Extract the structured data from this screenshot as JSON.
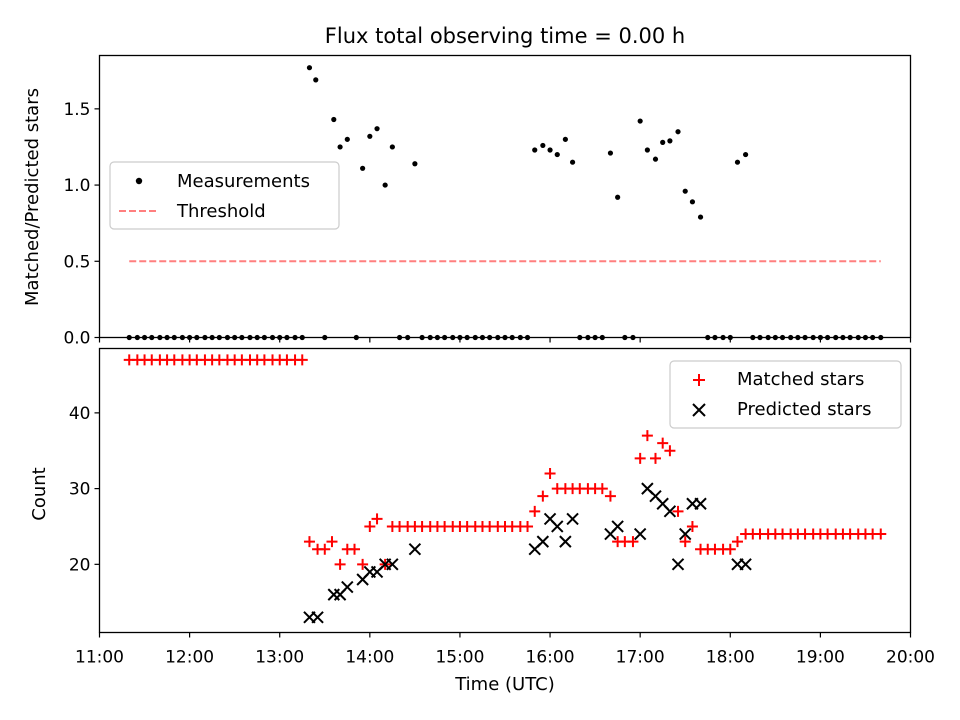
{
  "chart_data": [
    {
      "type": "scatter",
      "title": "Flux total observing time = 0.00 h",
      "xlabel": "",
      "ylabel": "Matched/Predicted stars",
      "xlim": [
        11.0,
        20.0
      ],
      "ylim": [
        0.0,
        1.85
      ],
      "yticks": [
        0.0,
        0.5,
        1.0,
        1.5
      ],
      "yticklabels": [
        "0.0",
        "0.5",
        "1.0",
        "1.5"
      ],
      "legend_position": "center-left",
      "series": [
        {
          "name": "Measurements",
          "color": "#000000",
          "marker": "dot",
          "x": [
            11.33,
            11.42,
            11.5,
            11.58,
            11.67,
            11.75,
            11.83,
            11.92,
            12.0,
            12.08,
            12.17,
            12.25,
            12.33,
            12.42,
            12.5,
            12.58,
            12.67,
            12.75,
            12.83,
            12.92,
            13.0,
            13.08,
            13.17,
            13.25,
            13.33,
            13.4,
            13.5,
            13.6,
            13.67,
            13.75,
            13.85,
            13.92,
            14.0,
            14.08,
            14.17,
            14.25,
            14.33,
            14.42,
            14.5,
            14.58,
            14.67,
            14.75,
            14.83,
            14.92,
            15.0,
            15.08,
            15.17,
            15.25,
            15.33,
            15.42,
            15.5,
            15.58,
            15.67,
            15.75,
            15.83,
            15.92,
            16.0,
            16.08,
            16.17,
            16.25,
            16.33,
            16.42,
            16.5,
            16.58,
            16.67,
            16.75,
            16.83,
            16.92,
            17.0,
            17.08,
            17.17,
            17.25,
            17.33,
            17.42,
            17.5,
            17.58,
            17.67,
            17.75,
            17.83,
            17.92,
            18.0,
            18.08,
            18.17,
            18.25,
            18.33,
            18.42,
            18.5,
            18.58,
            18.67,
            18.75,
            18.83,
            18.92,
            19.0,
            19.08,
            19.17,
            19.25,
            19.33,
            19.42,
            19.5,
            19.58,
            19.67
          ],
          "y": [
            0,
            0,
            0,
            0,
            0,
            0,
            0,
            0,
            0,
            0,
            0,
            0,
            0,
            0,
            0,
            0,
            0,
            0,
            0,
            0,
            0,
            0,
            0,
            0,
            1.77,
            1.69,
            0,
            1.43,
            1.25,
            1.3,
            0,
            1.11,
            1.32,
            1.37,
            1.0,
            1.25,
            0,
            0,
            1.14,
            0,
            0,
            0,
            0,
            0,
            0,
            0,
            0,
            0,
            0,
            0,
            0,
            0,
            0,
            0,
            1.23,
            1.26,
            1.23,
            1.2,
            1.3,
            1.15,
            0,
            0,
            0,
            0,
            1.21,
            0.92,
            0,
            0,
            1.42,
            1.23,
            1.17,
            1.28,
            1.29,
            1.35,
            0.96,
            0.89,
            0.79,
            0,
            0,
            0,
            0,
            1.15,
            1.2,
            0,
            0,
            0,
            0,
            0,
            0,
            0,
            0,
            0,
            0,
            0,
            0,
            0,
            0,
            0,
            0,
            0,
            0
          ]
        },
        {
          "name": "Threshold",
          "color": "#ff7f7f",
          "style": "dashed",
          "x": [
            11.33,
            19.67
          ],
          "y": [
            0.5,
            0.5
          ]
        }
      ]
    },
    {
      "type": "scatter",
      "title": "",
      "xlabel": "Time (UTC)",
      "ylabel": "Count",
      "xlim": [
        11.0,
        20.0
      ],
      "ylim": [
        11.0,
        48.5
      ],
      "xticks": [
        11,
        12,
        13,
        14,
        15,
        16,
        17,
        18,
        19,
        20
      ],
      "xticklabels": [
        "11:00",
        "12:00",
        "13:00",
        "14:00",
        "15:00",
        "16:00",
        "17:00",
        "18:00",
        "19:00",
        "20:00"
      ],
      "yticks": [
        20,
        30,
        40
      ],
      "yticklabels": [
        "20",
        "30",
        "40"
      ],
      "legend_position": "top-right",
      "series": [
        {
          "name": "Matched stars",
          "color": "#ff0000",
          "marker": "plus",
          "x": [
            11.33,
            11.42,
            11.5,
            11.58,
            11.67,
            11.75,
            11.83,
            11.92,
            12.0,
            12.08,
            12.17,
            12.25,
            12.33,
            12.42,
            12.5,
            12.58,
            12.67,
            12.75,
            12.83,
            12.92,
            13.0,
            13.08,
            13.17,
            13.25,
            13.33,
            13.42,
            13.5,
            13.58,
            13.67,
            13.75,
            13.83,
            13.92,
            14.0,
            14.08,
            14.17,
            14.25,
            14.33,
            14.42,
            14.5,
            14.58,
            14.67,
            14.75,
            14.83,
            14.92,
            15.0,
            15.08,
            15.17,
            15.25,
            15.33,
            15.42,
            15.5,
            15.58,
            15.67,
            15.75,
            15.83,
            15.92,
            16.0,
            16.08,
            16.17,
            16.25,
            16.33,
            16.42,
            16.5,
            16.58,
            16.67,
            16.75,
            16.83,
            16.92,
            17.0,
            17.08,
            17.17,
            17.25,
            17.33,
            17.42,
            17.5,
            17.58,
            17.67,
            17.75,
            17.83,
            17.92,
            18.0,
            18.08,
            18.17,
            18.25,
            18.33,
            18.42,
            18.5,
            18.58,
            18.67,
            18.75,
            18.83,
            18.92,
            19.0,
            19.08,
            19.17,
            19.25,
            19.33,
            19.42,
            19.5,
            19.58,
            19.67
          ],
          "y": [
            47,
            47,
            47,
            47,
            47,
            47,
            47,
            47,
            47,
            47,
            47,
            47,
            47,
            47,
            47,
            47,
            47,
            47,
            47,
            47,
            47,
            47,
            47,
            47,
            23,
            22,
            22,
            23,
            20,
            22,
            22,
            20,
            25,
            26,
            20,
            25,
            25,
            25,
            25,
            25,
            25,
            25,
            25,
            25,
            25,
            25,
            25,
            25,
            25,
            25,
            25,
            25,
            25,
            25,
            27,
            29,
            32,
            30,
            30,
            30,
            30,
            30,
            30,
            30,
            29,
            23,
            23,
            23,
            34,
            37,
            34,
            36,
            35,
            27,
            23,
            25,
            22,
            22,
            22,
            22,
            22,
            23,
            24,
            24,
            24,
            24,
            24,
            24,
            24,
            24,
            24,
            24,
            24,
            24,
            24,
            24,
            24,
            24,
            24,
            24,
            24
          ]
        },
        {
          "name": "Predicted stars",
          "color": "#000000",
          "marker": "x",
          "x": [
            13.33,
            13.42,
            13.6,
            13.67,
            13.75,
            13.92,
            14.0,
            14.08,
            14.17,
            14.25,
            14.5,
            15.83,
            15.92,
            16.0,
            16.08,
            16.17,
            16.25,
            16.67,
            16.75,
            17.0,
            17.08,
            17.17,
            17.25,
            17.33,
            17.42,
            17.5,
            17.58,
            17.67,
            18.08,
            18.17
          ],
          "y": [
            13,
            13,
            16,
            16,
            17,
            18,
            19,
            19,
            20,
            20,
            22,
            22,
            23,
            26,
            25,
            23,
            26,
            24,
            25,
            24,
            30,
            29,
            28,
            27,
            20,
            24,
            28,
            28,
            20,
            20
          ]
        }
      ]
    }
  ]
}
